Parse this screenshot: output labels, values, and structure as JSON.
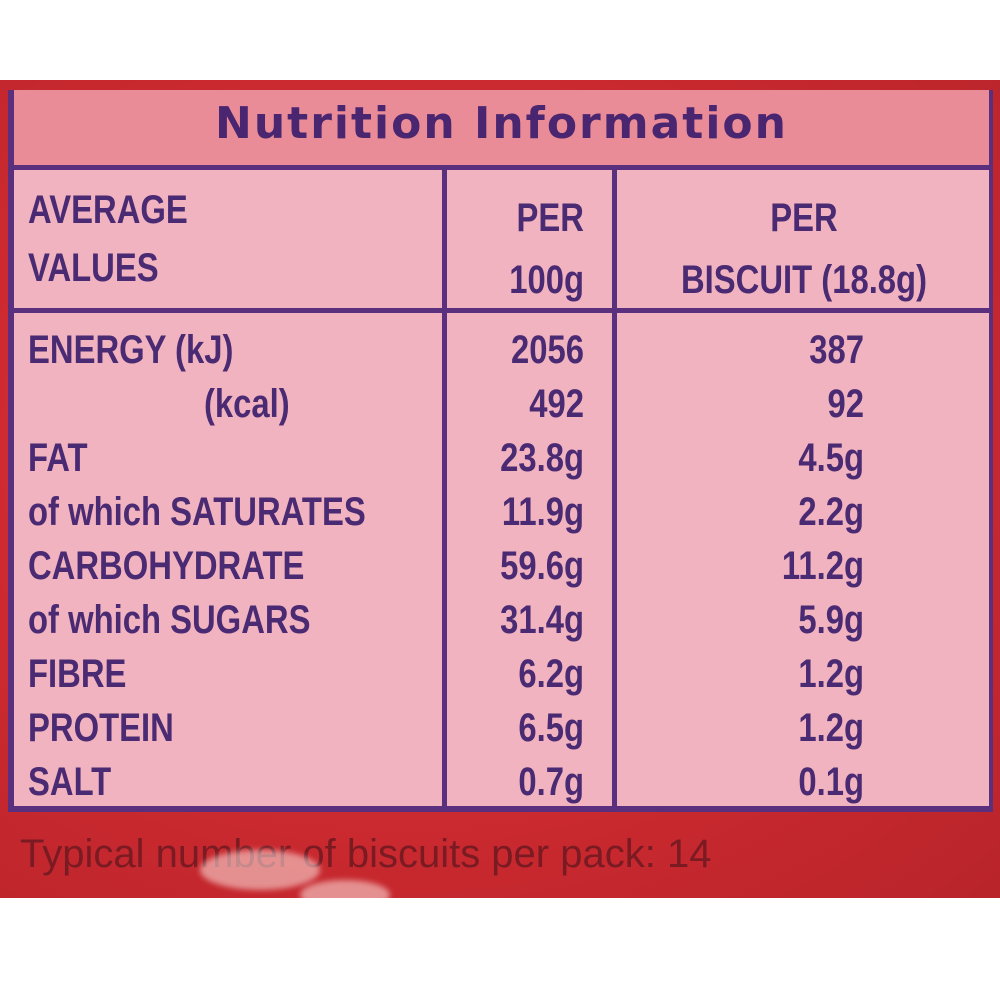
{
  "title": "Nutrition Information",
  "headers": {
    "col1_line1": "AVERAGE",
    "col1_line2": "VALUES",
    "col2_line1": "PER",
    "col2_line2": "100g",
    "col3_line1": "PER",
    "col3_line2": "BISCUIT (18.8g)"
  },
  "rows": [
    {
      "label": "ENERGY (kJ)",
      "per100": "2056",
      "perBiscuit": "387"
    },
    {
      "label": "(kcal)",
      "per100": "492",
      "perBiscuit": "92"
    },
    {
      "label": "FAT",
      "per100": "23.8g",
      "perBiscuit": "4.5g"
    },
    {
      "label": "of which SATURATES",
      "per100": "11.9g",
      "perBiscuit": "2.2g"
    },
    {
      "label": "CARBOHYDRATE",
      "per100": "59.6g",
      "perBiscuit": "11.2g"
    },
    {
      "label": "of which SUGARS",
      "per100": "31.4g",
      "perBiscuit": "5.9g"
    },
    {
      "label": "FIBRE",
      "per100": "6.2g",
      "perBiscuit": "1.2g"
    },
    {
      "label": "PROTEIN",
      "per100": "6.5g",
      "perBiscuit": "1.2g"
    },
    {
      "label": "SALT",
      "per100": "0.7g",
      "perBiscuit": "0.1g"
    }
  ],
  "footer": "Typical number of biscuits per pack: 14",
  "colors": {
    "panel": "#f0b3bf",
    "title_band": "#ea8c97",
    "ink": "#4a2a72",
    "wrapper": "#d8343a"
  }
}
